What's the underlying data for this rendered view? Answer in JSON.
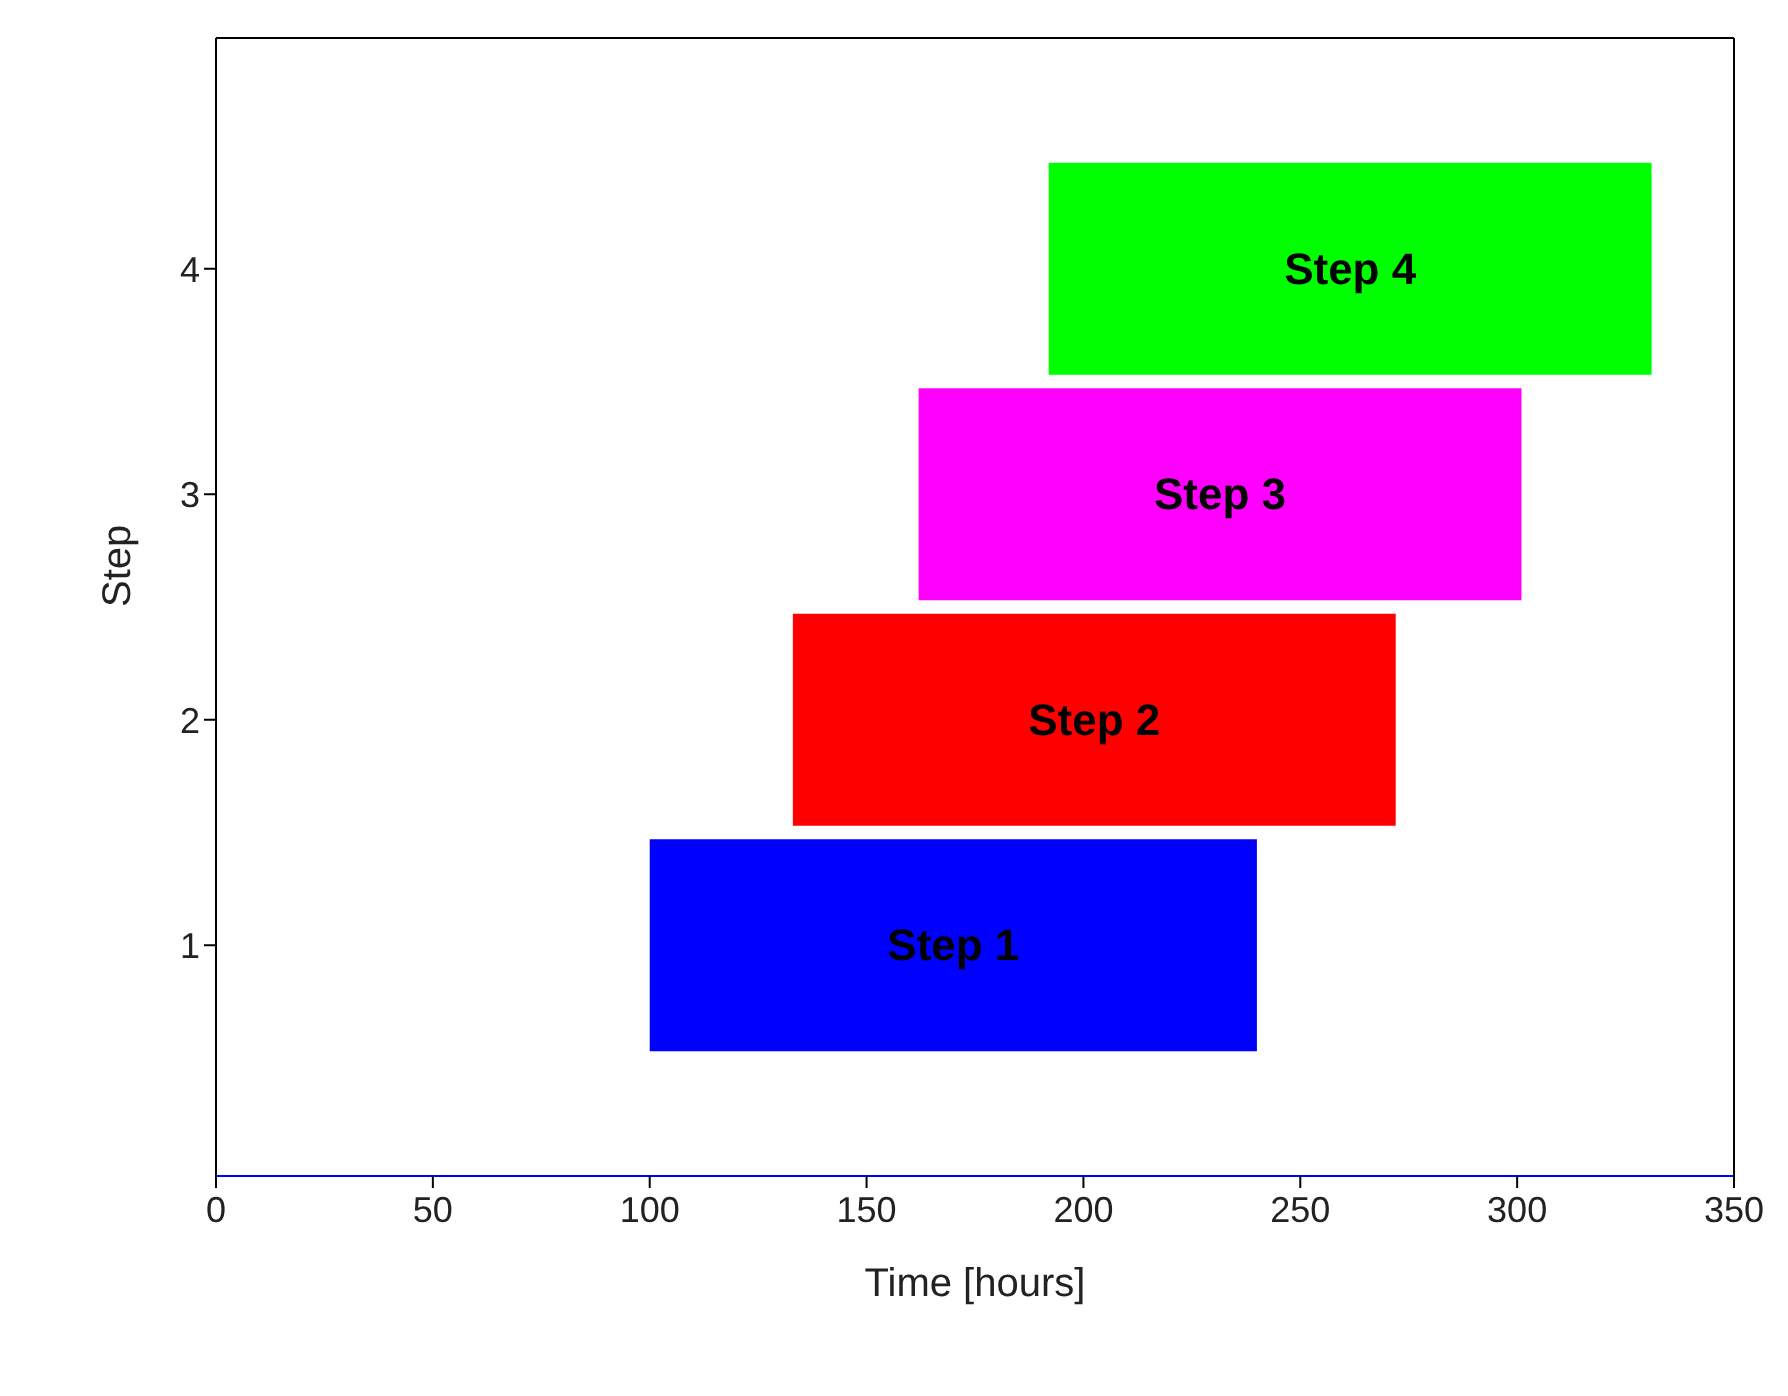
{
  "chart_data": {
    "type": "bar",
    "orientation": "horizontal",
    "xlabel": "Time [hours]",
    "ylabel": "Step",
    "categories": [
      "4",
      "3",
      "2",
      "1"
    ],
    "base": [
      192,
      162,
      133,
      100
    ],
    "values": [
      139,
      139,
      139,
      140
    ],
    "colors": [
      "#00ff00",
      "#ff00ff",
      "#ff0000",
      "#0000ff"
    ],
    "value_labels": [
      "Step 4",
      "Step 3",
      "Step 2",
      "Step 1"
    ],
    "xlim": [
      0,
      350
    ],
    "xticks": [
      0,
      50,
      100,
      150,
      200,
      250,
      300,
      350
    ]
  }
}
